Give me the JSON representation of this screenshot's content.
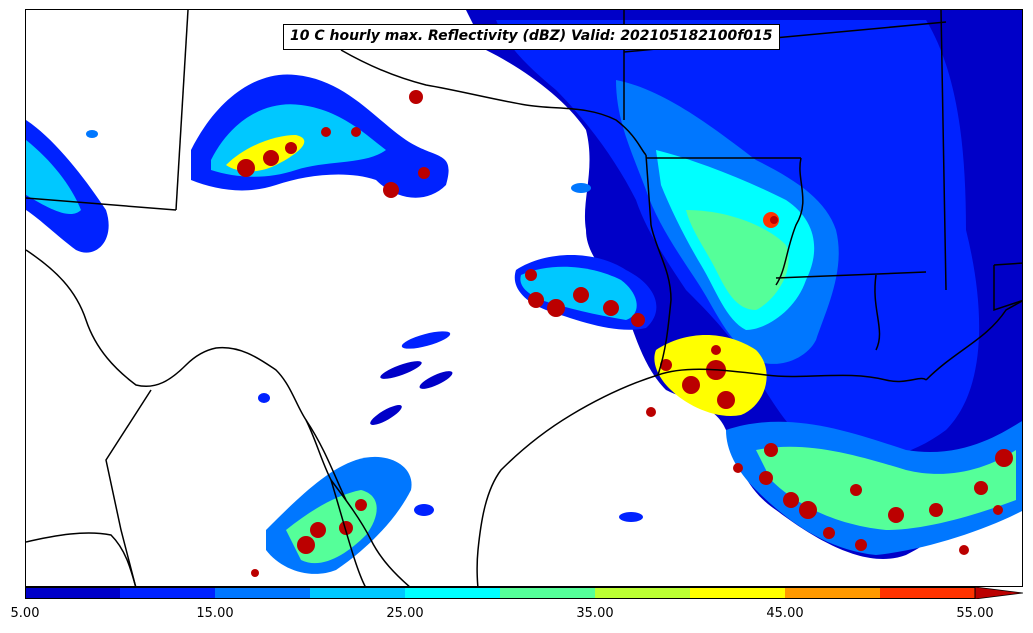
{
  "title": "10 C hourly max. Reflectivity (dBZ) Valid: 202105182100f015",
  "colorbar": {
    "tick_labels": [
      "5.00",
      "15.00",
      "25.00",
      "35.00",
      "45.00",
      "55.00"
    ],
    "levels": [
      5,
      10,
      15,
      20,
      25,
      30,
      35,
      40,
      45,
      50,
      55
    ],
    "colors": [
      "#0000c8",
      "#0022ff",
      "#0077ff",
      "#00c8ff",
      "#00ffff",
      "#55ff99",
      "#bbff33",
      "#ffff00",
      "#ff9900",
      "#ff3300",
      "#bb0000"
    ],
    "extend": "max"
  },
  "map": {
    "background": "#ffffff",
    "boundary_color": "#000000"
  }
}
